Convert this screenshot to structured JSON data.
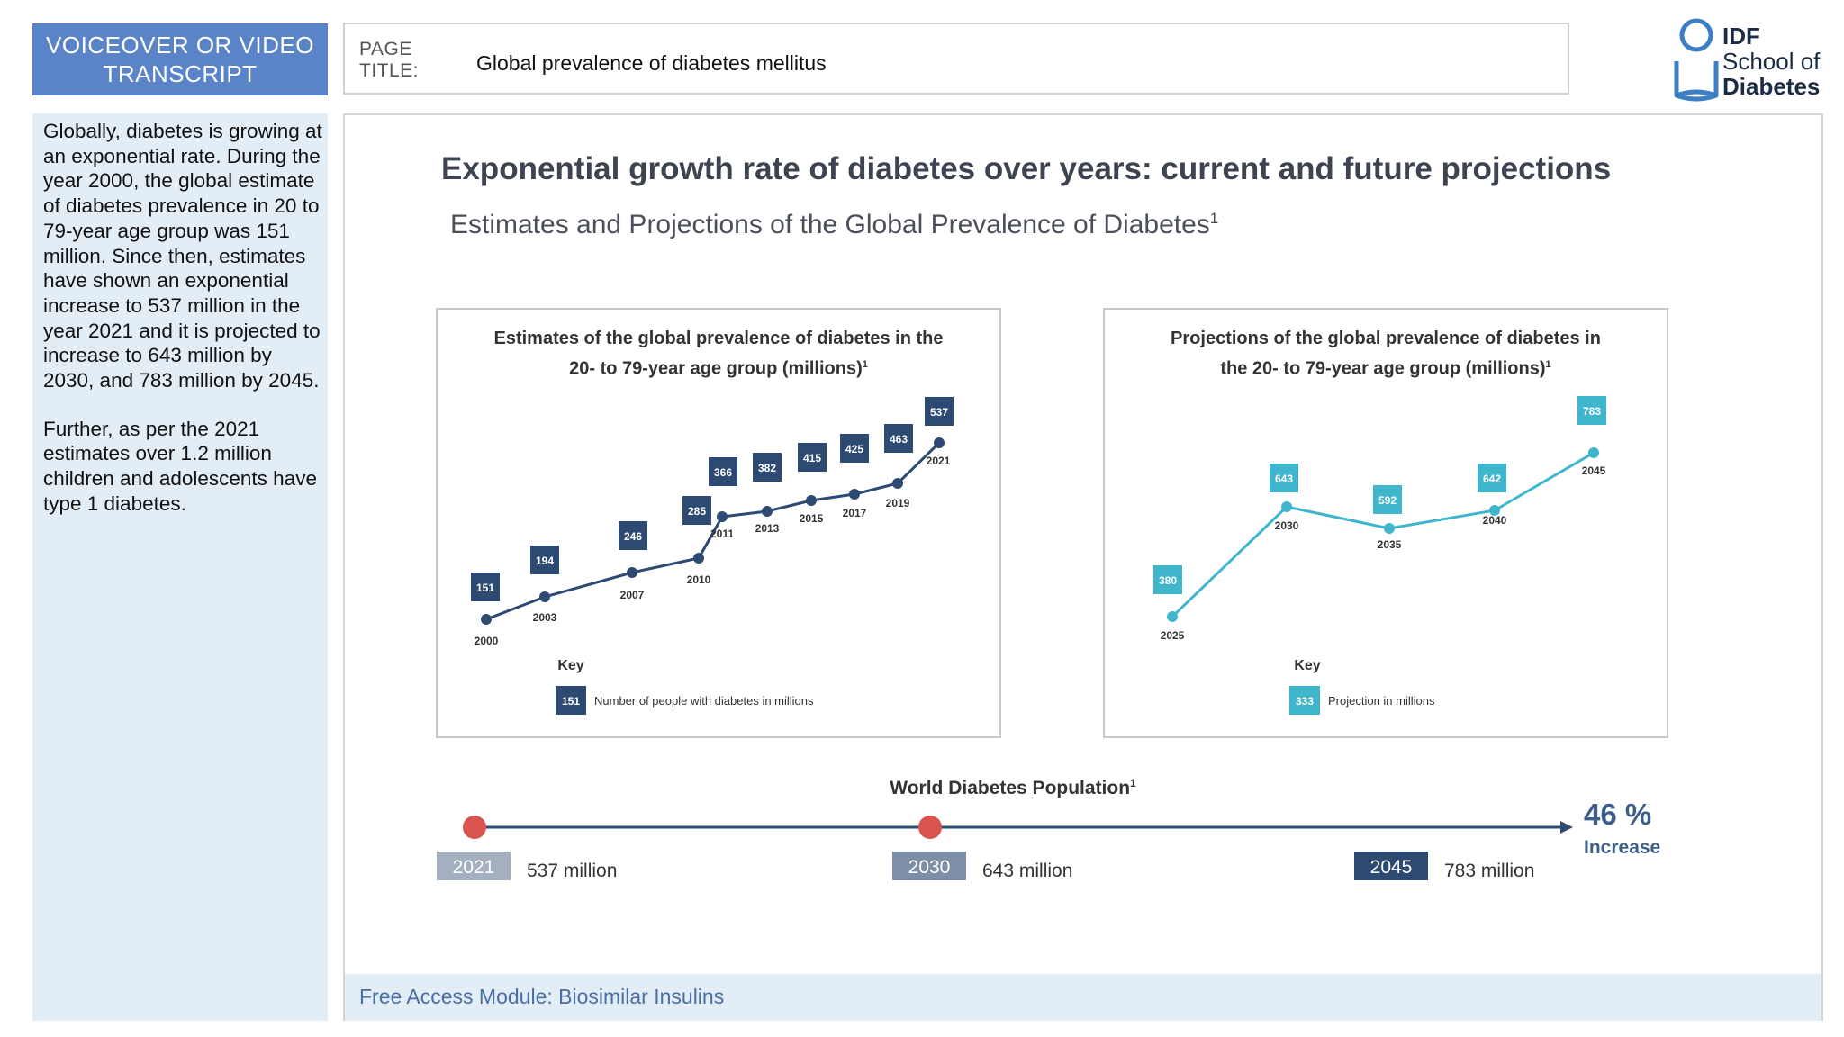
{
  "header": {
    "vo_line1": "VOICEOVER OR VIDEO",
    "vo_line2": "TRANSCRIPT",
    "page_label_line1": "PAGE",
    "page_label_line2": "TITLE:",
    "page_title": "Global prevalence of diabetes mellitus"
  },
  "logo": {
    "line1": "IDF",
    "line2": "School of",
    "line3": "Diabetes"
  },
  "transcript": {
    "p1": "Globally, diabetes is growing at an exponential rate. During the year 2000, the global estimate of diabetes prevalence in 20 to 79-year age group was 151 million. Since then, estimates have shown an exponential increase to 537 million in the year 2021 and it is projected to increase to 643 million by 2030, and 783 million by 2045.",
    "p2": "Further, as per the 2021 estimates over 1.2 million children and adolescents have type 1 diabetes."
  },
  "slide": {
    "title": "Exponential growth rate of diabetes over years: current and future projections",
    "subtitle": "Estimates and Projections of the Global Prevalence of Diabetes",
    "subtitle_sup": "1"
  },
  "colors": {
    "dark_navy": "#2d4a73",
    "teal": "#3fb6cc",
    "red": "#d9534f",
    "slate": "#7d8fa6",
    "light_slate": "#a4b0c0"
  },
  "chart_data": [
    {
      "type": "line",
      "title_line1": "Estimates of the global prevalence of diabetes in the",
      "title_line2": "20- to 79-year age group (millions)",
      "title_sup": "1",
      "x": [
        "2000",
        "2003",
        "2007",
        "2010",
        "2011",
        "2013",
        "2015",
        "2017",
        "2019",
        "2021"
      ],
      "labels": [
        "151",
        "194",
        "246",
        "285",
        "366",
        "382",
        "415",
        "425",
        "463",
        "537"
      ],
      "values": [
        151,
        194,
        246,
        285,
        366,
        382,
        415,
        425,
        463,
        537
      ],
      "key_title": "Key",
      "key_sample": "151",
      "key_label": "Number of people with diabetes in millions",
      "color": "#2d4a73"
    },
    {
      "type": "line",
      "title_line1": "Projections of the global prevalence of diabetes in",
      "title_line2": "the 20- to 79-year age group (millions)",
      "title_sup": "1",
      "x": [
        "2025",
        "2030",
        "2035",
        "2040",
        "2045"
      ],
      "labels": [
        "380",
        "643",
        "592",
        "642",
        "783"
      ],
      "values": [
        380,
        643,
        592,
        642,
        783
      ],
      "key_title": "Key",
      "key_sample": "333",
      "key_label": "Projection in millions",
      "color": "#3fb6cc"
    }
  ],
  "world": {
    "title": "World Diabetes Population",
    "title_sup": "1",
    "points": [
      {
        "year": "2021",
        "value": "537 million"
      },
      {
        "year": "2030",
        "value": "643 million"
      },
      {
        "year": "2045",
        "value": "783 million"
      }
    ],
    "increase_value": "46 %",
    "increase_label": "Increase"
  },
  "footer": {
    "text": "Free Access Module: Biosimilar Insulins"
  }
}
